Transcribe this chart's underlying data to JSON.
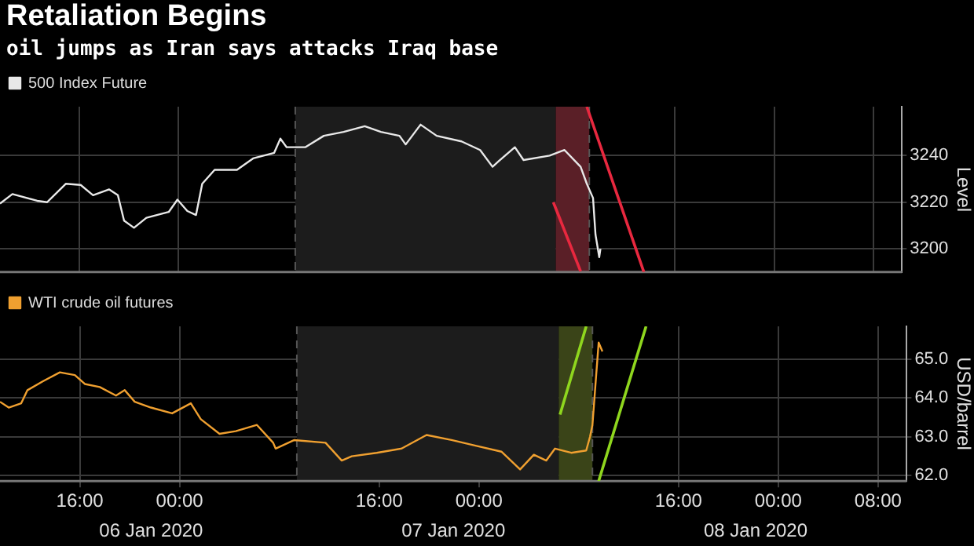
{
  "chart_data": [
    {
      "type": "line",
      "title": "Retaliation Begins",
      "subtitle": "oil jumps as Iran says attacks Iraq base",
      "ylabel": "Level",
      "legend": "top left",
      "grid": true,
      "marker": "none",
      "line_style": "solid",
      "tick_labels": "y",
      "xlim": [
        "2020-01-06T09:36",
        "2020-01-09T10:18"
      ],
      "xticks": [
        {
          "value": "2020-01-06T16:00",
          "label": null
        },
        {
          "value": "2020-01-07T00:00",
          "label": null
        },
        {
          "value": "2020-01-07T16:00",
          "label": null
        },
        {
          "value": "2020-01-08T00:00",
          "label": null
        },
        {
          "value": "2020-01-08T16:00",
          "label": null
        },
        {
          "value": "2020-01-09T00:00",
          "label": null
        },
        {
          "value": "2020-01-09T08:00",
          "label": null
        }
      ],
      "ylim": [
        3190,
        3261
      ],
      "yticks": [
        3200,
        3220,
        3240
      ],
      "bands": [
        {
          "axis": "x",
          "from": "2020-01-07T09:24",
          "to": "2020-01-08T06:24",
          "color": "#1c1c1c"
        },
        {
          "axis": "x",
          "from": "2020-01-08T06:24",
          "to": "2020-01-08T09:06",
          "color": "#5a1f27"
        }
      ],
      "ref_lines": [
        {
          "axis": "x",
          "value": "2020-01-07T09:24",
          "color": "#555555",
          "line_style": "dashed"
        },
        {
          "axis": "x",
          "value": "2020-01-08T09:06",
          "color": "#555555",
          "line_style": "dashed"
        }
      ],
      "series": [
        {
          "name": "500 Index Future",
          "color": "#e8e8e8",
          "x": [
            "2020-01-06T09:36",
            "2020-01-06T10:36",
            "2020-01-06T12:36",
            "2020-01-06T13:24",
            "2020-01-06T14:54",
            "2020-01-06T16:06",
            "2020-01-06T17:06",
            "2020-01-06T18:24",
            "2020-01-06T19:06",
            "2020-01-06T19:36",
            "2020-01-06T20:24",
            "2020-01-06T21:24",
            "2020-01-06T23:12",
            "2020-01-06T23:54",
            "2020-01-07T00:42",
            "2020-01-07T01:24",
            "2020-01-07T01:54",
            "2020-01-07T02:54",
            "2020-01-07T04:42",
            "2020-01-07T06:00",
            "2020-01-07T07:42",
            "2020-01-07T08:12",
            "2020-01-07T08:42",
            "2020-01-07T10:12",
            "2020-01-07T11:42",
            "2020-01-07T13:18",
            "2020-01-07T15:00",
            "2020-01-07T16:18",
            "2020-01-07T17:48",
            "2020-01-07T18:18",
            "2020-01-07T19:30",
            "2020-01-07T20:48",
            "2020-01-07T22:48",
            "2020-01-08T00:18",
            "2020-01-08T01:18",
            "2020-01-08T01:48",
            "2020-01-08T03:06",
            "2020-01-08T03:48",
            "2020-01-08T05:54",
            "2020-01-08T07:06",
            "2020-01-08T08:24",
            "2020-01-08T08:54",
            "2020-01-08T09:24",
            "2020-01-08T09:36",
            "2020-01-08T09:54",
            "2020-01-08T10:00"
          ],
          "values": [
            3219.4,
            3223.5,
            3220.6,
            3220,
            3227.9,
            3227.4,
            3223,
            3225.5,
            3223,
            3212.1,
            3209,
            3213.3,
            3215.8,
            3221.1,
            3216.2,
            3214.5,
            3227.9,
            3233.9,
            3233.9,
            3238.8,
            3241.2,
            3247.3,
            3243.6,
            3243.6,
            3248.5,
            3250.2,
            3252.6,
            3250.2,
            3248.5,
            3244.8,
            3253.3,
            3248.5,
            3246.1,
            3242.4,
            3235.2,
            3237.6,
            3243.6,
            3238.1,
            3240,
            3242.4,
            3235.2,
            3227.9,
            3221.8,
            3206.1,
            3196.4,
            3200
          ]
        },
        {
          "type": "line",
          "color": "#e8283f",
          "x": [
            "2020-01-08T06:12",
            "2020-01-08T08:24"
          ],
          "values": [
            3220,
            3190.3
          ]
        },
        {
          "type": "line",
          "color": "#e8283f",
          "x": [
            "2020-01-08T08:54",
            "2020-01-08T13:30"
          ],
          "values": [
            3261,
            3190
          ]
        }
      ]
    },
    {
      "type": "line",
      "ylabel": "USD/barrel",
      "legend": "top left",
      "grid": true,
      "marker": "none",
      "line_style": "solid",
      "xlim": [
        "2020-01-06T09:36",
        "2020-01-09T10:18"
      ],
      "xticks": [
        {
          "value": "2020-01-06T16:00",
          "label": "16:00"
        },
        {
          "value": "2020-01-07T00:00",
          "label": "00:00"
        },
        {
          "value": "2020-01-07T16:00",
          "label": "16:00"
        },
        {
          "value": "2020-01-08T00:00",
          "label": "00:00"
        },
        {
          "value": "2020-01-08T16:00",
          "label": "16:00"
        },
        {
          "value": "2020-01-09T00:00",
          "label": "00:00"
        },
        {
          "value": "2020-01-09T08:00",
          "label": "08:00"
        }
      ],
      "ylim": [
        61.85,
        65.85
      ],
      "yticks": [
        {
          "value": 62,
          "label": "62.0"
        },
        {
          "value": 63,
          "label": "63.0"
        },
        {
          "value": 64,
          "label": "64.0"
        },
        {
          "value": 65,
          "label": "65.0"
        }
      ],
      "bands": [
        {
          "axis": "x",
          "from": "2020-01-07T09:24",
          "to": "2020-01-08T06:24",
          "color": "#1c1c1c"
        },
        {
          "axis": "x",
          "from": "2020-01-08T06:24",
          "to": "2020-01-08T09:06",
          "color": "#3a4418"
        }
      ],
      "ref_lines": [
        {
          "axis": "x",
          "value": "2020-01-07T09:24",
          "color": "#555555",
          "line_style": "dashed"
        },
        {
          "axis": "x",
          "value": "2020-01-08T09:06",
          "color": "#555555",
          "line_style": "dashed"
        }
      ],
      "annotations": [
        "06 Jan 2020",
        "07 Jan 2020",
        "08 Jan 2020"
      ],
      "series": [
        {
          "name": "WTI crude oil futures",
          "color": "#f0a030",
          "x": [
            "2020-01-06T09:36",
            "2020-01-06T10:18",
            "2020-01-06T11:18",
            "2020-01-06T11:48",
            "2020-01-06T13:06",
            "2020-01-06T14:24",
            "2020-01-06T15:36",
            "2020-01-06T16:24",
            "2020-01-06T17:36",
            "2020-01-06T18:54",
            "2020-01-06T19:36",
            "2020-01-06T20:24",
            "2020-01-06T21:42",
            "2020-01-06T23:24",
            "2020-01-07T00:54",
            "2020-01-07T01:42",
            "2020-01-07T03:12",
            "2020-01-07T04:30",
            "2020-01-07T06:12",
            "2020-01-07T07:30",
            "2020-01-07T07:42",
            "2020-01-07T09:12",
            "2020-01-07T11:42",
            "2020-01-07T13:00",
            "2020-01-07T13:48",
            "2020-01-07T15:48",
            "2020-01-07T17:48",
            "2020-01-07T19:48",
            "2020-01-07T21:48",
            "2020-01-07T23:48",
            "2020-01-08T01:48",
            "2020-01-08T03:18",
            "2020-01-08T04:24",
            "2020-01-08T05:24",
            "2020-01-08T06:06",
            "2020-01-08T07:24",
            "2020-01-08T08:36",
            "2020-01-08T08:54",
            "2020-01-08T09:06",
            "2020-01-08T09:24",
            "2020-01-08T09:36",
            "2020-01-08T09:54"
          ],
          "values": [
            63.9,
            63.75,
            63.86,
            64.2,
            64.44,
            64.66,
            64.59,
            64.36,
            64.28,
            64.06,
            64.2,
            63.9,
            63.75,
            63.6,
            63.86,
            63.45,
            63.07,
            63.14,
            63.3,
            62.84,
            62.69,
            62.91,
            62.84,
            62.38,
            62.49,
            62.58,
            62.69,
            63.04,
            62.91,
            62.76,
            62.61,
            62.15,
            62.53,
            62.38,
            62.69,
            62.58,
            62.64,
            62.99,
            63.3,
            64.59,
            65.43,
            65.2
          ]
        },
        {
          "type": "line",
          "color": "#8fd61e",
          "x": [
            "2020-01-08T06:30",
            "2020-01-08T08:36"
          ],
          "values": [
            63.57,
            65.85
          ]
        },
        {
          "type": "line",
          "color": "#8fd61e",
          "x": [
            "2020-01-08T09:36",
            "2020-01-08T13:24"
          ],
          "values": [
            61.85,
            65.85
          ]
        }
      ]
    }
  ]
}
